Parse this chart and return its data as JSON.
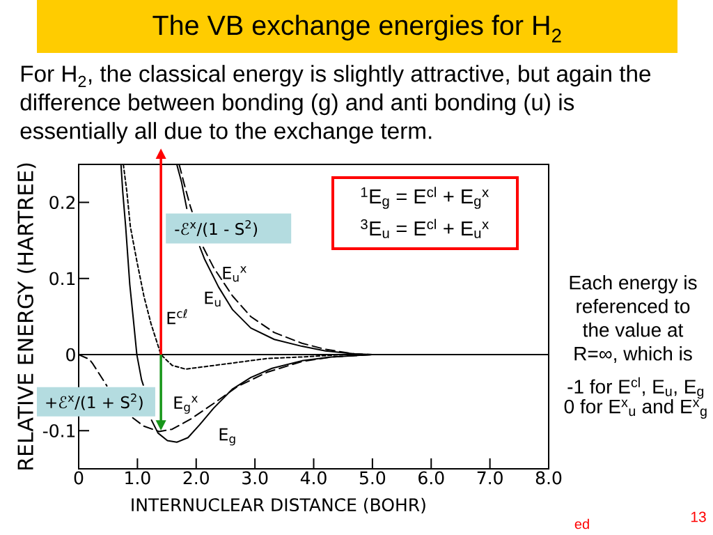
{
  "chart_data": {
    "type": "line",
    "title": "The VB exchange energies for H$_{2}$",
    "subtitle": "For H$_{2}$, the classical energy is slightly attractive, but again the difference between bonding (g) and anti bonding (u) is essentially all due to the exchange term.",
    "xlabel": "INTERNUCLEAR DISTANCE (BOHR)",
    "ylabel": "RELATIVE ENERGY (HARTREE)",
    "xlim": [
      0,
      8
    ],
    "ylim": [
      -0.15,
      0.25
    ],
    "xticks": [
      0,
      {
        "value": 1,
        "label": "1.0"
      },
      {
        "value": 2,
        "label": "2.0"
      },
      {
        "value": 3,
        "label": "3.0"
      },
      {
        "value": 4,
        "label": "4.0"
      },
      {
        "value": 5,
        "label": "5.0"
      },
      {
        "value": 6,
        "label": "6.0"
      },
      {
        "value": 7,
        "label": "7.0"
      },
      {
        "value": 8,
        "label": "8.0"
      }
    ],
    "yticks": [
      -0.1,
      0,
      0.1,
      0.2
    ],
    "series": [
      {
        "name": "E$^{cℓ}$",
        "color": "#000000",
        "line_style": "dotted",
        "x": [
          0.76,
          0.82,
          0.88,
          0.99,
          1.11,
          1.23,
          1.4,
          1.59,
          1.82,
          2.22,
          2.62,
          3.21,
          3.8,
          4.5,
          5.0
        ],
        "values": [
          0.25,
          0.214,
          0.168,
          0.123,
          0.077,
          0.041,
          0.0,
          -0.014,
          -0.019,
          -0.015,
          -0.011,
          -0.005,
          -0.003,
          0.0,
          0.0
        ]
      },
      {
        "name": "E$_{u}$",
        "color": "#000000",
        "line_style": "solid",
        "x": [
          1.67,
          1.75,
          1.84,
          1.95,
          2.06,
          2.14,
          2.38,
          2.62,
          2.93,
          3.33,
          3.8,
          4.2,
          4.7,
          5.0
        ],
        "values": [
          0.25,
          0.227,
          0.192,
          null,
          0.142,
          0.126,
          0.089,
          0.059,
          0.035,
          0.02,
          0.011,
          0.005,
          0.001,
          0.0
        ]
      },
      {
        "name": "E$_{u}$$^{x}$",
        "color": "#000000",
        "line_style": "dashed",
        "x": [
          1.71,
          1.79,
          1.9,
          1.93,
          2.02,
          2.12,
          2.3,
          2.62,
          2.93,
          3.33,
          3.8,
          4.2,
          4.7,
          5.0
        ],
        "values": [
          0.25,
          0.226,
          0.195,
          0.188,
          null,
          0.141,
          0.114,
          0.077,
          0.05,
          0.029,
          0.015,
          0.007,
          0.001,
          0.0
        ]
      },
      {
        "name": "E$_{g}$$^{x}$",
        "color": "#000000",
        "line_style": "dashed",
        "x": [
          0,
          0.18,
          0.24,
          0.44,
          0.48,
          0.7,
          0.92,
          1.11,
          1.37,
          1.59,
          1.9,
          2.3,
          2.7,
          3.21,
          3.8,
          4.3,
          5.0
        ],
        "values": [
          0.0,
          -0.006,
          -0.012,
          -0.036,
          -0.041,
          null,
          -0.083,
          -0.094,
          -0.101,
          -0.098,
          -0.085,
          -0.064,
          -0.042,
          -0.023,
          -0.009,
          -0.003,
          0.0
        ]
      },
      {
        "name": "E$_{g}$",
        "color": "#000000",
        "line_style": "solid",
        "x": [
          0.72,
          0.75,
          0.8,
          0.87,
          0.93,
          0.99,
          1.07,
          1.1,
          1.16,
          1.24,
          1.35,
          1.51,
          1.67,
          1.86,
          2.06,
          2.3,
          2.62,
          2.93,
          3.29,
          3.8,
          4.3,
          5.0
        ],
        "values": [
          0.25,
          0.214,
          0.168,
          0.092,
          0.047,
          0.0,
          -0.033,
          -0.04,
          null,
          -0.086,
          -0.103,
          -0.113,
          -0.115,
          -0.109,
          -0.092,
          -0.07,
          -0.045,
          -0.03,
          -0.018,
          -0.008,
          -0.003,
          0.0
        ]
      }
    ],
    "ref_lines": [
      {
        "axis": "y",
        "value": 0,
        "color": "#000000"
      }
    ],
    "annotations": [
      "-ℰ$^{x}$/(1 - S$^{2}$)",
      {
        "text": "+ℰ$^{x}$/(1 + S$^{2}$)",
        "x": 1.4,
        "y": -0.1
      },
      "$^{1}$E$_{g}$ = E$^{cl}$ + E$_{g}$$^{x}$",
      "$^{3}$E$_{u}$ = E$^{cl}$ + E$_{u}$$^{x}$",
      "Each energy is referenced to the value at R=∞, which is",
      "-1 for E$^{cl}$, E$_{u}$, E$_{g}$",
      "0 for E$^{x}$$_{u}$ and E$^{x}$$_{g}$",
      "ed",
      "13"
    ]
  }
}
